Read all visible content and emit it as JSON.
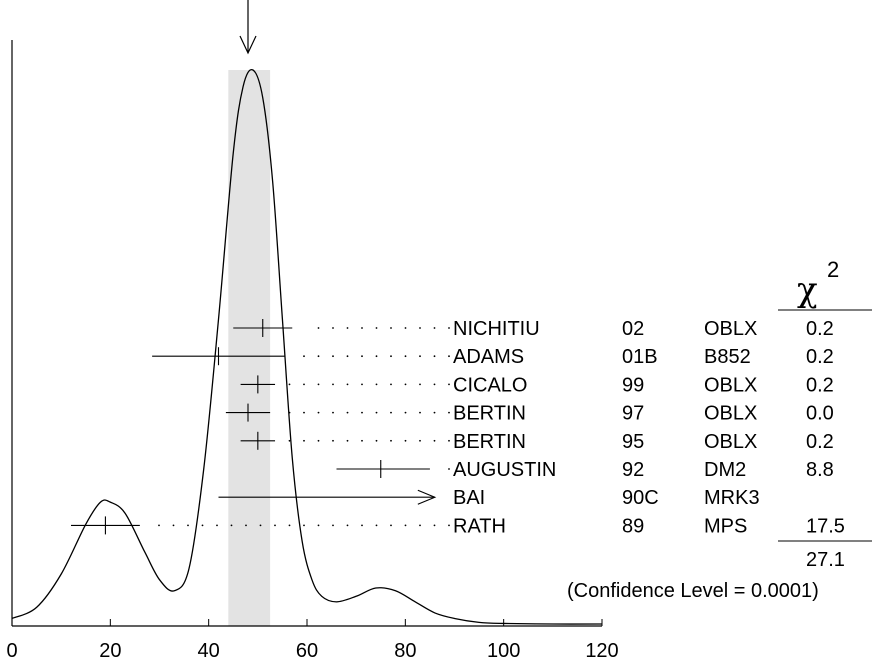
{
  "chart_data": {
    "type": "ideogram",
    "x_ticks": [
      0,
      20,
      40,
      60,
      80,
      100,
      120
    ],
    "xlim": [
      0,
      120
    ],
    "band": [
      44,
      52.5
    ],
    "arrow_marker": 48,
    "curve": [
      [
        0,
        0.01
      ],
      [
        5,
        0.03
      ],
      [
        10,
        0.09
      ],
      [
        15,
        0.18
      ],
      [
        18,
        0.22
      ],
      [
        20,
        0.22
      ],
      [
        23,
        0.2
      ],
      [
        27,
        0.13
      ],
      [
        30,
        0.08
      ],
      [
        33,
        0.06
      ],
      [
        36,
        0.1
      ],
      [
        39,
        0.28
      ],
      [
        42,
        0.55
      ],
      [
        45,
        0.85
      ],
      [
        47,
        0.97
      ],
      [
        49,
        1.0
      ],
      [
        51,
        0.95
      ],
      [
        53,
        0.8
      ],
      [
        55,
        0.55
      ],
      [
        57,
        0.3
      ],
      [
        59,
        0.15
      ],
      [
        61,
        0.08
      ],
      [
        63,
        0.05
      ],
      [
        66,
        0.04
      ],
      [
        70,
        0.05
      ],
      [
        74,
        0.065
      ],
      [
        78,
        0.06
      ],
      [
        82,
        0.04
      ],
      [
        86,
        0.02
      ],
      [
        90,
        0.01
      ],
      [
        95,
        0.003
      ],
      [
        100,
        0.001
      ],
      [
        110,
        0.0
      ],
      [
        120,
        0.0
      ]
    ],
    "entries": [
      {
        "name": "NICHITIU",
        "year": "02",
        "tech": "OBLX",
        "chi2": "0.2",
        "value": 51,
        "lo": 45,
        "hi": 57
      },
      {
        "name": "ADAMS",
        "year": "01B",
        "tech": "B852",
        "chi2": "0.2",
        "value": 42,
        "lo": 28.5,
        "hi": 55.5
      },
      {
        "name": "CICALO",
        "year": "99",
        "tech": "OBLX",
        "chi2": "0.2",
        "value": 50,
        "lo": 46.5,
        "hi": 53.5
      },
      {
        "name": "BERTIN",
        "year": "97",
        "tech": "OBLX",
        "chi2": "0.0",
        "value": 48,
        "lo": 43.5,
        "hi": 52.5
      },
      {
        "name": "BERTIN",
        "year": "95",
        "tech": "OBLX",
        "chi2": "0.2",
        "value": 50,
        "lo": 46.5,
        "hi": 53.5
      },
      {
        "name": "AUGUSTIN",
        "year": "92",
        "tech": "DM2",
        "chi2": "8.8",
        "value": 75,
        "lo": 66,
        "hi": 85
      },
      {
        "name": "BAI",
        "year": "90C",
        "tech": "MRK3",
        "chi2": "",
        "value": 42,
        "lo": 42,
        "hi": 86,
        "lower_limit": true
      },
      {
        "name": "RATH",
        "year": "89",
        "tech": "MPS",
        "chi2": "17.5",
        "value": 19,
        "lo": 12,
        "hi": 26
      }
    ],
    "chi2_header": "χ",
    "chi2_sup": "2",
    "chi2_total": "27.1",
    "confidence_text": "(Confidence Level = 0.0001)"
  }
}
